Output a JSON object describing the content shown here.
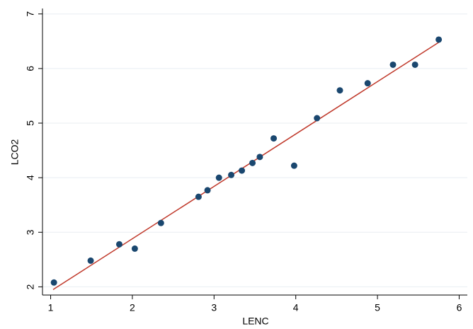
{
  "chart_data": {
    "type": "scatter",
    "x_label": "LENC",
    "y_label": "LCO2",
    "x": [
      1.04,
      1.49,
      1.84,
      2.03,
      2.35,
      2.81,
      2.92,
      3.06,
      3.21,
      3.34,
      3.47,
      3.56,
      3.73,
      3.98,
      4.26,
      4.54,
      4.88,
      5.19,
      5.46,
      5.75
    ],
    "values": [
      2.08,
      2.48,
      2.78,
      2.7,
      3.17,
      3.65,
      3.77,
      4.0,
      4.05,
      4.13,
      4.27,
      4.38,
      4.72,
      4.22,
      5.09,
      5.6,
      5.73,
      6.07,
      6.07,
      6.53
    ],
    "color": "#1a476f",
    "fit": {
      "x": [
        1.03,
        5.75
      ],
      "values": [
        1.95,
        6.48
      ],
      "color": "#c0392b"
    },
    "xlim": [
      0.9,
      6.1
    ],
    "ylim": [
      1.85,
      7.1
    ],
    "xticks": [
      1,
      2,
      3,
      4,
      5,
      6
    ],
    "yticks": [
      2,
      3,
      4,
      5,
      6,
      7
    ],
    "grid": true
  }
}
